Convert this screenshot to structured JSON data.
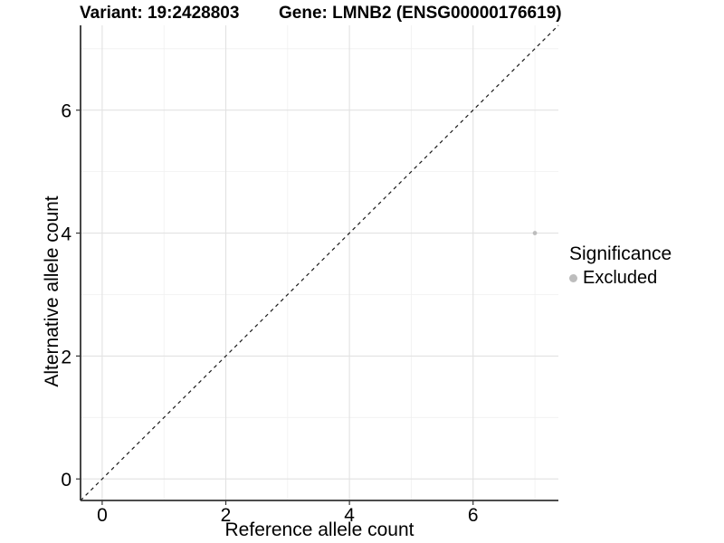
{
  "header": {
    "variant_title": "Variant: 19:2428803",
    "gene_title": "Gene: LMNB2 (ENSG00000176619)"
  },
  "chart_data": {
    "type": "scatter",
    "xlabel": "Reference allele count",
    "ylabel": "Alternative allele count",
    "xlim": [
      -0.35,
      7.38
    ],
    "ylim": [
      -0.35,
      7.38
    ],
    "xticks": [
      0,
      2,
      4,
      6
    ],
    "yticks": [
      0,
      2,
      4,
      6
    ],
    "xticks_minor": [
      1,
      3,
      5,
      7
    ],
    "yticks_minor": [
      1,
      3,
      5,
      7
    ],
    "grid": true,
    "reference_line": {
      "type": "identity",
      "style": "dashed",
      "color": "#1a1a1a"
    },
    "series": [
      {
        "name": "Excluded",
        "color": "#bdbdbd",
        "points": [
          {
            "x": 7,
            "y": 4
          }
        ]
      }
    ],
    "legend": {
      "title": "Significance",
      "position": "right",
      "items": [
        {
          "label": "Excluded",
          "color": "#bdbdbd"
        }
      ]
    }
  },
  "colors": {
    "background": "#ffffff",
    "axis_line": "#333333",
    "tick_mark": "#333333",
    "grid_major": "#e2e2e2",
    "grid_minor": "#f0f0f0",
    "text": "#000000"
  }
}
